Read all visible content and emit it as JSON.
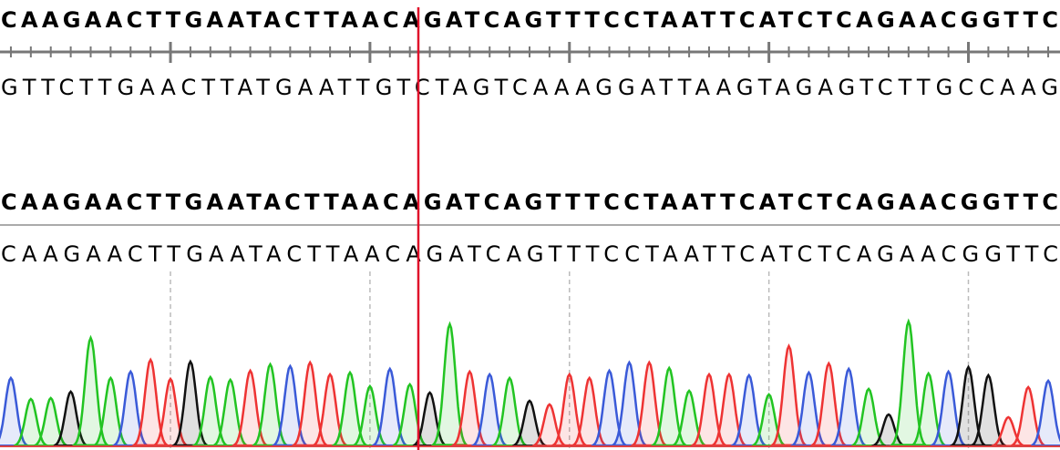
{
  "reference": {
    "sequence": "CAAGAACTTGAATACTTAACAGATCAGTTTCCTAATTCATCTCAGAACGGTTC",
    "complement": "GTTCTTGAACTTATGAATTGTCTAGTCAAAGGATTAAGTAGAGTCTTGCCAAG"
  },
  "read": {
    "consensus": "CAAGAACTTGAATACTTAACAGATCAGTTTCCTAATTCATCTCAGAACGGTTC",
    "sequence": "CAAGAACTTGAATACTTAACAGATCAGTTTCCTAATTCATCTCAGAACGGTTC"
  },
  "trace": {
    "colors": {
      "A": "#22c422",
      "C": "#3a5ad8",
      "G": "#111111",
      "T": "#ee3333"
    },
    "heights": [
      75,
      52,
      53,
      60,
      119,
      75,
      82,
      95,
      74,
      93,
      76,
      73,
      83,
      90,
      88,
      92,
      79,
      81,
      66,
      85,
      68,
      59,
      134,
      82,
      79,
      75,
      50,
      46,
      79,
      75,
      83,
      92,
      92,
      86,
      61,
      79,
      79,
      78,
      57,
      110,
      81,
      91,
      85,
      63,
      35,
      137,
      80,
      82,
      87,
      78,
      32,
      65,
      72
    ]
  }
}
